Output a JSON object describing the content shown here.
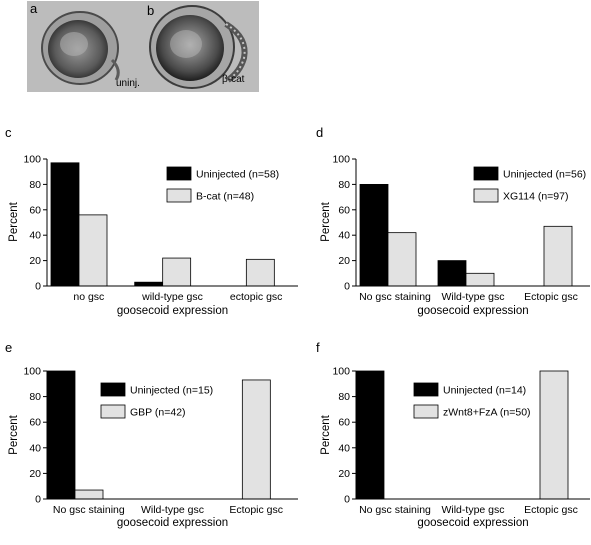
{
  "panels_top": [
    {
      "letter": "a",
      "label": "uninj."
    },
    {
      "letter": "b",
      "label": "β-cat"
    }
  ],
  "chart_data": [
    {
      "panel": "c",
      "type": "bar",
      "ylabel": "Percent",
      "xlabel": "goosecoid expression",
      "ylim": [
        0,
        100
      ],
      "yticks": [
        0,
        20,
        40,
        60,
        80,
        100
      ],
      "categories": [
        "no gsc",
        "wild-type gsc",
        "ectopic gsc"
      ],
      "series": [
        {
          "name": "Uninjected (n=58)",
          "color": "#000000",
          "values": [
            97,
            3,
            0
          ]
        },
        {
          "name": "B-cat (n=48)",
          "color": "#e2e2e2",
          "values": [
            56,
            22,
            21
          ]
        }
      ]
    },
    {
      "panel": "d",
      "type": "bar",
      "ylabel": "Percent",
      "xlabel": "goosecoid expression",
      "ylim": [
        0,
        100
      ],
      "yticks": [
        0,
        20,
        40,
        60,
        80,
        100
      ],
      "categories": [
        "No gsc staining",
        "Wild-type gsc",
        "Ectopic gsc"
      ],
      "series": [
        {
          "name": "Uninjected (n=56)",
          "color": "#000000",
          "values": [
            80,
            20,
            0
          ]
        },
        {
          "name": "XG114 (n=97)",
          "color": "#e2e2e2",
          "values": [
            42,
            10,
            47
          ]
        }
      ]
    },
    {
      "panel": "e",
      "type": "bar",
      "ylabel": "Percent",
      "xlabel": "goosecoid expression",
      "ylim": [
        0,
        100
      ],
      "yticks": [
        0,
        20,
        40,
        60,
        80,
        100
      ],
      "categories": [
        "No gsc staining",
        "Wild-type gsc",
        "Ectopic gsc"
      ],
      "series": [
        {
          "name": "Uninjected (n=15)",
          "color": "#000000",
          "values": [
            100,
            0,
            0
          ]
        },
        {
          "name": "GBP (n=42)",
          "color": "#e2e2e2",
          "values": [
            7,
            0,
            93
          ]
        }
      ]
    },
    {
      "panel": "f",
      "type": "bar",
      "ylabel": "Percent",
      "xlabel": "goosecoid expression",
      "ylim": [
        0,
        100
      ],
      "yticks": [
        0,
        20,
        40,
        60,
        80,
        100
      ],
      "categories": [
        "No gsc staining",
        "Wild-type gsc",
        "Ectopic gsc"
      ],
      "series": [
        {
          "name": "Uninjected (n=14)",
          "color": "#000000",
          "values": [
            100,
            0,
            0
          ]
        },
        {
          "name": "zWnt8+FzA (n=50)",
          "color": "#e2e2e2",
          "values": [
            0,
            0,
            100
          ]
        }
      ]
    }
  ]
}
